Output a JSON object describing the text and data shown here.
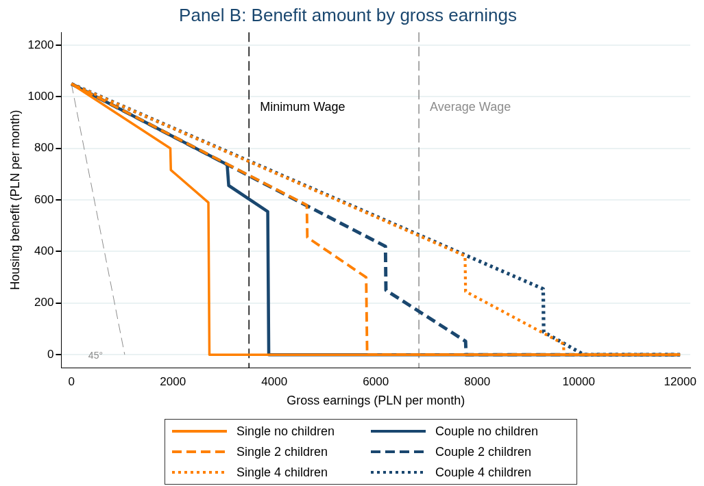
{
  "chart_data": {
    "type": "line",
    "title": "Panel B: Benefit amount by gross earnings",
    "xlabel": "Gross earnings (PLN per month)",
    "ylabel": "Housing benefit (PLN per month)",
    "xlim": [
      -200,
      12200
    ],
    "xticks": [
      0,
      2000,
      4000,
      6000,
      8000,
      10000,
      12000
    ],
    "ylim": [
      -50,
      1250
    ],
    "yticks": [
      0,
      200,
      400,
      600,
      800,
      1000,
      1200
    ],
    "grid": "y",
    "legend": "bottom",
    "marker": "none",
    "series": [
      {
        "name": "Single no children",
        "color": "#ff8000",
        "line_style": "solid",
        "x": [
          0,
          1950,
          1960,
          2700,
          2720,
          12000
        ],
        "values": [
          1050,
          800,
          716,
          590,
          0,
          0
        ]
      },
      {
        "name": "Single 2 children",
        "color": "#ff8000",
        "line_style": "dashed",
        "x": [
          0,
          4640,
          4650,
          5810,
          5830,
          12000
        ],
        "values": [
          1050,
          580,
          455,
          300,
          0,
          0
        ]
      },
      {
        "name": "Single 4 children",
        "color": "#ff8000",
        "line_style": "dotted",
        "x": [
          0,
          7760,
          7770,
          9700,
          9710,
          12000
        ],
        "values": [
          1050,
          383,
          245,
          42,
          0,
          0
        ]
      },
      {
        "name": "Couple no children",
        "color": "#1a476f",
        "line_style": "solid",
        "x": [
          0,
          3070,
          3100,
          3870,
          3890,
          12000
        ],
        "values": [
          1050,
          737,
          656,
          555,
          0,
          0
        ]
      },
      {
        "name": "Couple 2 children",
        "color": "#1a476f",
        "line_style": "dashed",
        "x": [
          0,
          6190,
          6200,
          7770,
          7780,
          12000
        ],
        "values": [
          1050,
          420,
          250,
          52,
          0,
          0
        ]
      },
      {
        "name": "Couple 4 children",
        "color": "#1a476f",
        "line_style": "dotted",
        "x": [
          0,
          9300,
          9310,
          10100,
          12000
        ],
        "values": [
          1050,
          255,
          88,
          0,
          0
        ]
      },
      {
        "color": "#8c8c8c",
        "line_style": "dashed",
        "x": [
          0,
          1050
        ],
        "values": [
          1050,
          0
        ]
      }
    ],
    "ref_lines": [
      {
        "axis": "x",
        "value": 3500,
        "label": "Minimum Wage",
        "color": "#000000",
        "line_style": "dashed"
      },
      {
        "axis": "x",
        "value": 6850,
        "label": "Average Wage",
        "color": "#8c8c8c",
        "line_style": "dashed"
      }
    ],
    "annotations": [
      "45°"
    ]
  }
}
